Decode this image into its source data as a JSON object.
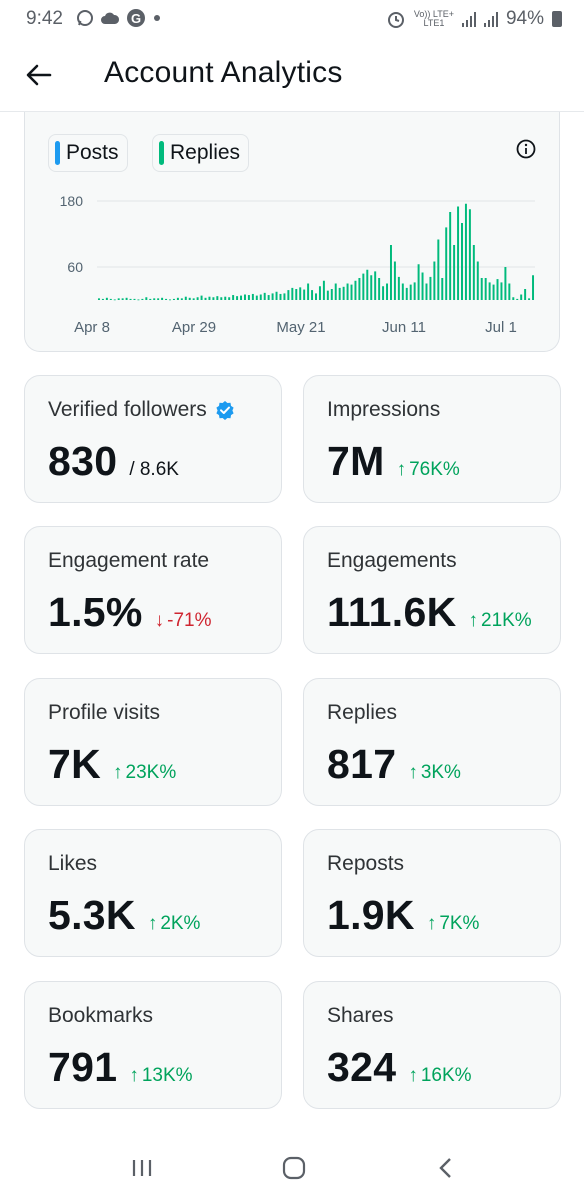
{
  "status_bar": {
    "time": "9:42",
    "volte": "Vo)) LTE+",
    "lte": "LTE1",
    "battery": "94%"
  },
  "header": {
    "title": "Account Analytics"
  },
  "chart": {
    "legend": [
      "Posts",
      "Replies"
    ],
    "colors": {
      "posts": "#1d9bf0",
      "replies": "#00ba7c"
    },
    "chart_data": {
      "type": "bar",
      "y_ticks": [
        "180",
        "60"
      ],
      "x_ticks": [
        "Apr 8",
        "Apr 29",
        "May 21",
        "Jun 11",
        "Jul 1"
      ],
      "ylim": [
        0,
        200
      ],
      "grid": true,
      "values": [
        3,
        2,
        4,
        2,
        1,
        3,
        3,
        4,
        2,
        2,
        1,
        2,
        5,
        2,
        3,
        3,
        4,
        2,
        1,
        2,
        4,
        3,
        6,
        4,
        3,
        5,
        8,
        4,
        6,
        5,
        7,
        5,
        6,
        5,
        9,
        7,
        8,
        10,
        9,
        11,
        8,
        10,
        13,
        9,
        12,
        15,
        11,
        12,
        18,
        22,
        20,
        23,
        19,
        30,
        18,
        12,
        25,
        35,
        17,
        20,
        30,
        22,
        24,
        30,
        28,
        35,
        40,
        48,
        55,
        45,
        52,
        40,
        25,
        30,
        100,
        70,
        42,
        30,
        22,
        28,
        32,
        65,
        50,
        30,
        42,
        70,
        110,
        40,
        132,
        160,
        100,
        170,
        140,
        175,
        165,
        100,
        70,
        40,
        40,
        32,
        28,
        38,
        32,
        60,
        30,
        5,
        2,
        10,
        20,
        3,
        45
      ]
    }
  },
  "metrics": [
    {
      "label": "Verified followers",
      "value": "830",
      "sub": "/ 8.6K",
      "verified": true
    },
    {
      "label": "Impressions",
      "value": "7M",
      "change": "76K%",
      "dir": "up",
      "arrow": "↑"
    },
    {
      "label": "Engagement rate",
      "value": "1.5%",
      "change": "-71%",
      "dir": "down",
      "arrow": "↓"
    },
    {
      "label": "Engagements",
      "value": "111.6K",
      "change": "21K%",
      "dir": "up",
      "arrow": "↑"
    },
    {
      "label": "Profile visits",
      "value": "7K",
      "change": "23K%",
      "dir": "up",
      "arrow": "↑"
    },
    {
      "label": "Replies",
      "value": "817",
      "change": "3K%",
      "dir": "up",
      "arrow": "↑"
    },
    {
      "label": "Likes",
      "value": "5.3K",
      "change": "2K%",
      "dir": "up",
      "arrow": "↑"
    },
    {
      "label": "Reposts",
      "value": "1.9K",
      "change": "7K%",
      "dir": "up",
      "arrow": "↑"
    },
    {
      "label": "Bookmarks",
      "value": "791",
      "change": "13K%",
      "dir": "up",
      "arrow": "↑"
    },
    {
      "label": "Shares",
      "value": "324",
      "change": "16K%",
      "dir": "up",
      "arrow": "↑"
    }
  ],
  "navbar": {
    "icons": [
      "recent-apps-icon",
      "home-icon",
      "back-icon"
    ]
  }
}
